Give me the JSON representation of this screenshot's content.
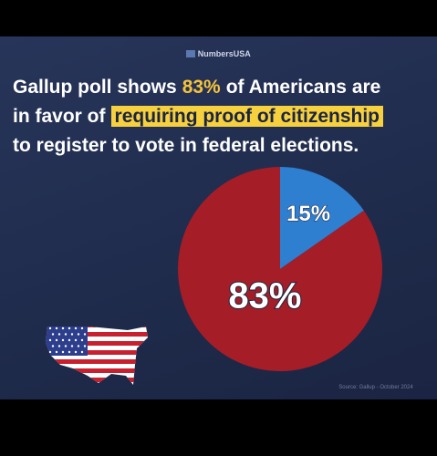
{
  "chart_data": {
    "type": "pie",
    "brand": "NumbersUSA",
    "title_lines": [
      [
        "Gallup poll shows",
        "83%",
        "of Americans are"
      ],
      [
        "in favor of",
        "requiring proof of citizenship"
      ],
      [
        "to register to vote in federal elections."
      ]
    ],
    "values": [
      15,
      83
    ],
    "value_labels": [
      "15%",
      "83%"
    ],
    "colors": [
      "#2e7fcf",
      "#a51d27"
    ],
    "source": "Source: Gallup - October 2024"
  }
}
